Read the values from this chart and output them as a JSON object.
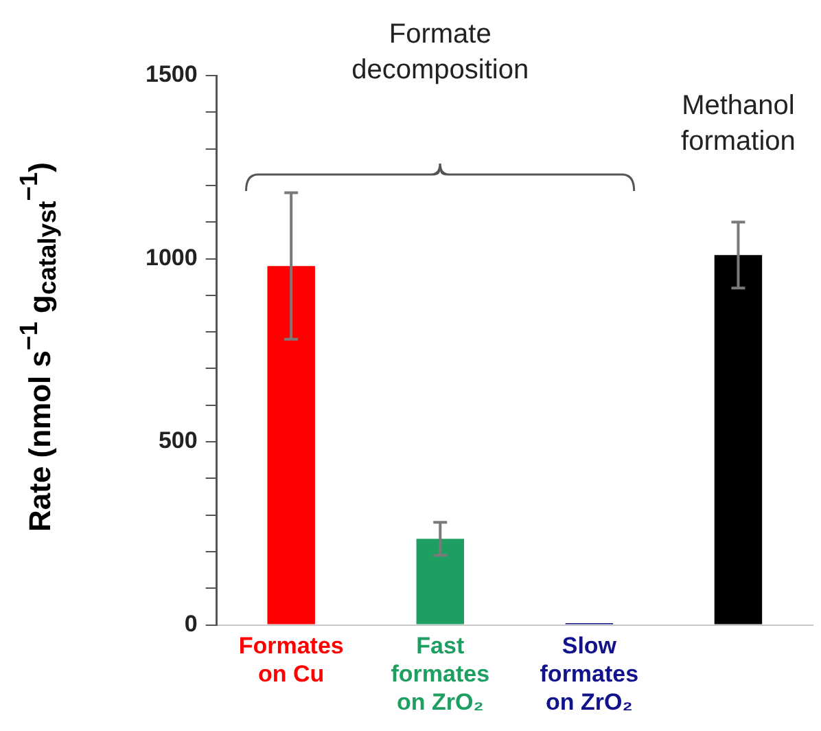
{
  "chart_data": {
    "type": "bar",
    "ylabel": "Rate (nmol s$^{−1}$ g$_{catalyst}$$^{−1}$)",
    "categories": [
      "Formates on Cu",
      "Fast formates on ZrO₂",
      "Slow formates on ZrO₂",
      null
    ],
    "values": [
      980,
      235,
      5,
      1010
    ],
    "colors": [
      "#ff0000",
      "#1e9e60",
      "#12128c",
      "#000000"
    ],
    "errors": [
      [
        780,
        1180
      ],
      [
        190,
        280
      ],
      null,
      [
        920,
        1100
      ]
    ],
    "ylim": [
      0,
      1500
    ],
    "yticks": [
      0,
      {
        "value": 100,
        "label": null
      },
      {
        "value": 200,
        "label": null
      },
      {
        "value": 300,
        "label": null
      },
      {
        "value": 400,
        "label": null
      },
      500,
      {
        "value": 600,
        "label": null
      },
      {
        "value": 700,
        "label": null
      },
      {
        "value": 800,
        "label": null
      },
      {
        "value": 900,
        "label": null
      },
      1000,
      {
        "value": 1100,
        "label": null
      },
      {
        "value": 1200,
        "label": null
      },
      {
        "value": 1300,
        "label": null
      },
      {
        "value": 1400,
        "label": null
      },
      1500
    ],
    "annotations": [
      "Formate decomposition",
      "Methanol formation"
    ],
    "grid": false,
    "legend": false
  }
}
